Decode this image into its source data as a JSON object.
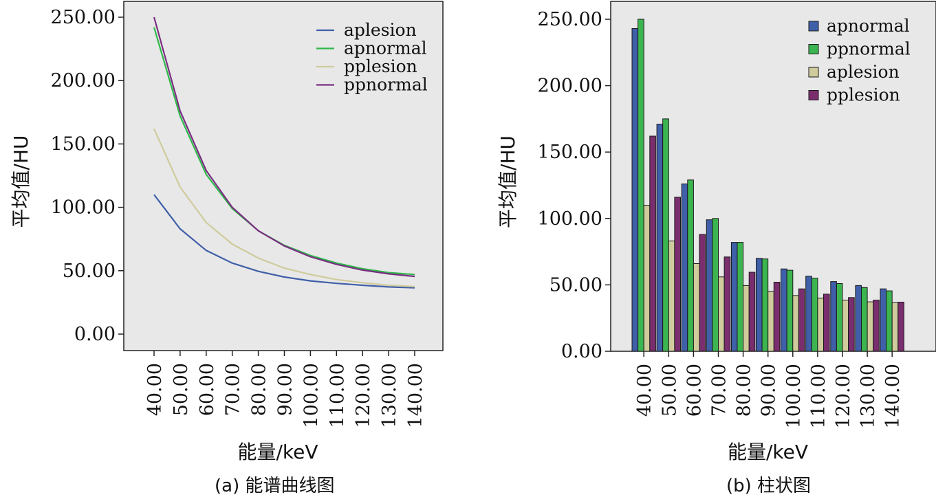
{
  "figure": {
    "caption_a": "(a) 能谱曲线图",
    "caption_b": "(b) 柱状图"
  },
  "chart_data": [
    {
      "type": "line",
      "xlabel": "能量/keV",
      "ylabel": "平均值/HU",
      "ylim": [
        -14,
        258
      ],
      "y_ticks": [
        "0.00",
        "50.00",
        "100.00",
        "150.00",
        "200.00",
        "250.00"
      ],
      "x": [
        "40.00",
        "50.00",
        "60.00",
        "70.00",
        "80.00",
        "90.00",
        "100.00",
        "110.00",
        "120.00",
        "130.00",
        "140.00"
      ],
      "legend_position": "top-right",
      "grid": false,
      "series": [
        {
          "name": "aplesion",
          "color": "#3f5fa8",
          "values": [
            110,
            83,
            66,
            56,
            49.5,
            45,
            42,
            40,
            38.5,
            37.2,
            36.5
          ]
        },
        {
          "name": "apnormal",
          "color": "#2fb84a",
          "values": [
            242,
            172,
            126,
            99,
            81.5,
            70,
            62,
            56,
            51.5,
            48.5,
            47
          ]
        },
        {
          "name": "pplesion",
          "color": "#cfcb9c",
          "values": [
            162,
            116,
            88,
            71,
            60,
            52,
            47,
            43,
            40.5,
            38.5,
            37.5
          ]
        },
        {
          "name": "ppnormal",
          "color": "#7a2e82",
          "values": [
            250,
            176,
            129,
            100,
            81.5,
            69.5,
            61,
            55,
            50.5,
            47.5,
            45.5
          ]
        }
      ]
    },
    {
      "type": "bar",
      "xlabel": "能量/keV",
      "ylabel": "平均值/HU",
      "ylim": [
        0,
        250
      ],
      "y_ticks": [
        "0.00",
        "50.00",
        "100.00",
        "150.00",
        "200.00",
        "250.00"
      ],
      "categories": [
        "40.00",
        "50.00",
        "60.00",
        "70.00",
        "80.00",
        "90.00",
        "100.00",
        "110.00",
        "120.00",
        "130.00",
        "140.00"
      ],
      "legend_position": "top-right",
      "grid": false,
      "series": [
        {
          "name": "apnormal",
          "color": "#3f5fa8",
          "values": [
            243,
            171,
            126,
            99,
            82,
            70,
            62,
            56.5,
            52.5,
            49.5,
            47
          ]
        },
        {
          "name": "ppnormal",
          "color": "#3cb550",
          "values": [
            250,
            175,
            129,
            100,
            82,
            69.5,
            61,
            55,
            51,
            48,
            45.5
          ]
        },
        {
          "name": "aplesion",
          "color": "#cfcb9c",
          "values": [
            110,
            83,
            66,
            56,
            49.5,
            45,
            42,
            40,
            38.5,
            37.2,
            36.5
          ]
        },
        {
          "name": "pplesion",
          "color": "#7a2e6e",
          "values": [
            162,
            116,
            88,
            71,
            59.5,
            52,
            47,
            43,
            40.5,
            38.5,
            37
          ]
        }
      ]
    }
  ]
}
